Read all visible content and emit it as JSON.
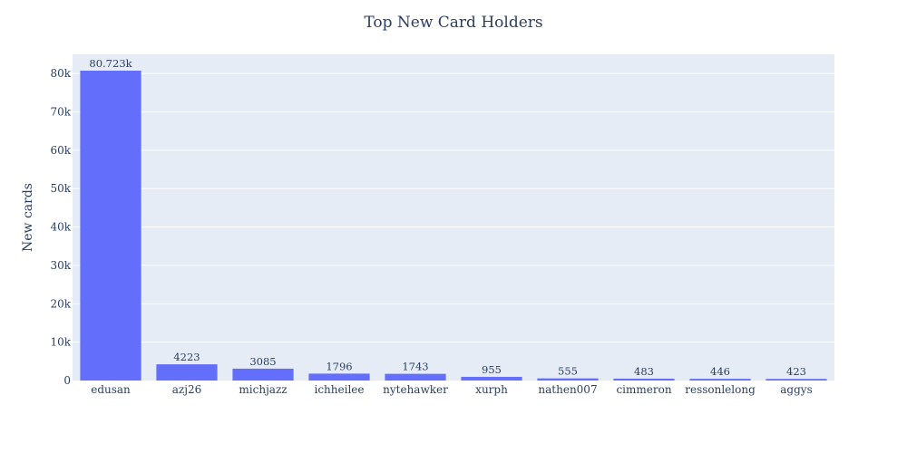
{
  "chart_data": {
    "type": "bar",
    "title": "Top New Card Holders",
    "xlabel": "",
    "ylabel": "New cards",
    "categories": [
      "edusan",
      "azj26",
      "michjazz",
      "ichheilee",
      "nytehawker",
      "xurph",
      "nathen007",
      "cimmeron",
      "ressonlelong",
      "aggys"
    ],
    "values": [
      80723,
      4223,
      3085,
      1796,
      1743,
      955,
      555,
      483,
      446,
      423
    ],
    "data_labels": [
      "80.723k",
      "4223",
      "3085",
      "1796",
      "1743",
      "955",
      "555",
      "483",
      "446",
      "423"
    ],
    "ylim": [
      0,
      84976
    ],
    "yticks": [
      0,
      10000,
      20000,
      30000,
      40000,
      50000,
      60000,
      70000,
      80000
    ],
    "ytick_labels": [
      "0",
      "10k",
      "20k",
      "30k",
      "40k",
      "50k",
      "60k",
      "70k",
      "80k"
    ],
    "grid": true,
    "colors": {
      "bar": "#636efa",
      "plot_bg": "#e5ecf6",
      "grid": "#ffffff",
      "text": "#2a3f5f"
    }
  }
}
